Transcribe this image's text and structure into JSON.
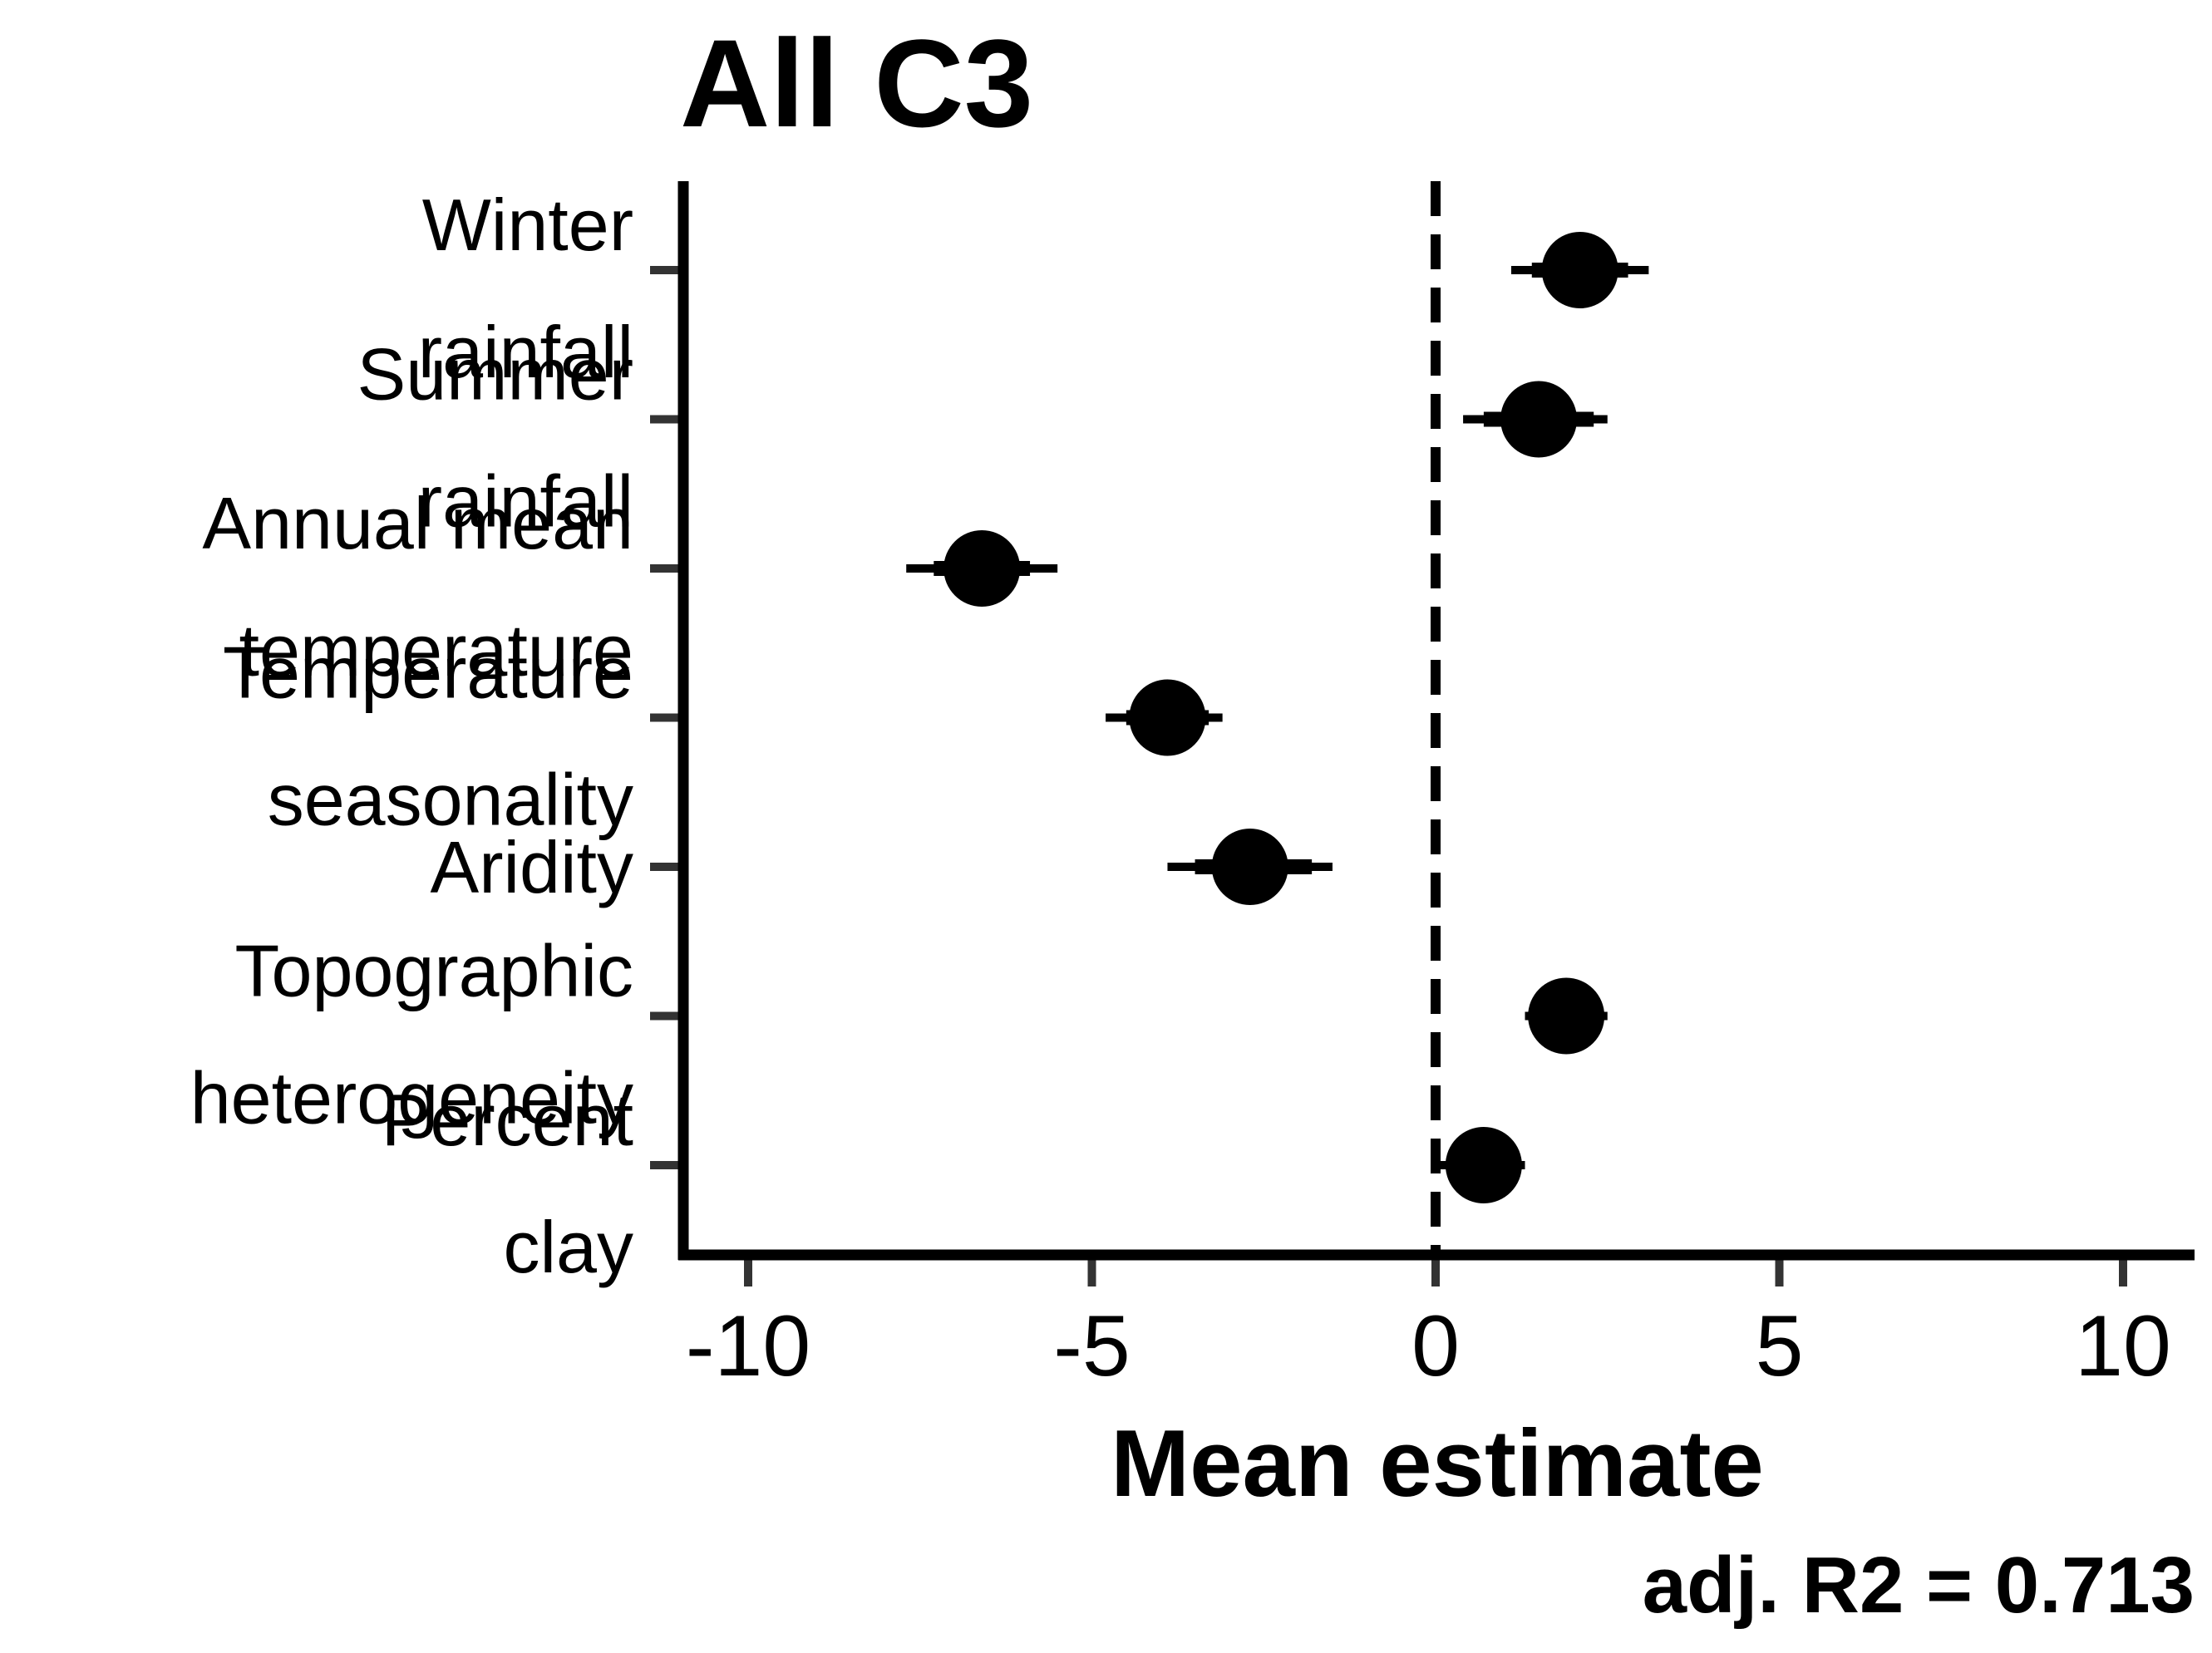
{
  "chart_data": {
    "type": "scatter",
    "title": "All C3",
    "xlabel": "Mean estimate",
    "ylabel": "",
    "xlim": [
      -11,
      11
    ],
    "xticks": [
      -10,
      -5,
      0,
      5,
      10
    ],
    "xtick_labels": [
      "-10",
      "-5",
      "0",
      "5",
      "10"
    ],
    "reference_line": {
      "x": 0,
      "style": "dashed"
    },
    "grid": false,
    "legend": "none",
    "annotation": "adj. R2 = 0.713",
    "colors": {
      "points": "#000000",
      "axis": "#000000",
      "ticks": "#333333"
    },
    "categories": [
      {
        "label_lines": [
          "Winter",
          "rainfall"
        ],
        "estimate": 2.1,
        "ci_inner": [
          1.4,
          2.8
        ],
        "ci_outer": [
          1.1,
          3.1
        ]
      },
      {
        "label_lines": [
          "Summer",
          "rainfall"
        ],
        "estimate": 1.5,
        "ci_inner": [
          0.7,
          2.3
        ],
        "ci_outer": [
          0.4,
          2.5
        ]
      },
      {
        "label_lines": [
          "Annual mean",
          "temperature"
        ],
        "estimate": -6.6,
        "ci_inner": [
          -7.3,
          -5.9
        ],
        "ci_outer": [
          -7.7,
          -5.5
        ]
      },
      {
        "label_lines": [
          "Temperature",
          "seasonality"
        ],
        "estimate": -3.9,
        "ci_inner": [
          -4.5,
          -3.3
        ],
        "ci_outer": [
          -4.8,
          -3.1
        ]
      },
      {
        "label_lines": [
          "Aridity"
        ],
        "estimate": -2.7,
        "ci_inner": [
          -3.5,
          -1.8
        ],
        "ci_outer": [
          -3.9,
          -1.5
        ]
      },
      {
        "label_lines": [
          "Topographic",
          "heterogeneity"
        ],
        "estimate": 1.9,
        "ci_inner": [
          1.5,
          2.3
        ],
        "ci_outer": [
          1.3,
          2.5
        ]
      },
      {
        "label_lines": [
          "Percent",
          "clay"
        ],
        "estimate": 0.7,
        "ci_inner": [
          0.2,
          1.1
        ],
        "ci_outer": [
          0.0,
          1.3
        ]
      }
    ]
  }
}
